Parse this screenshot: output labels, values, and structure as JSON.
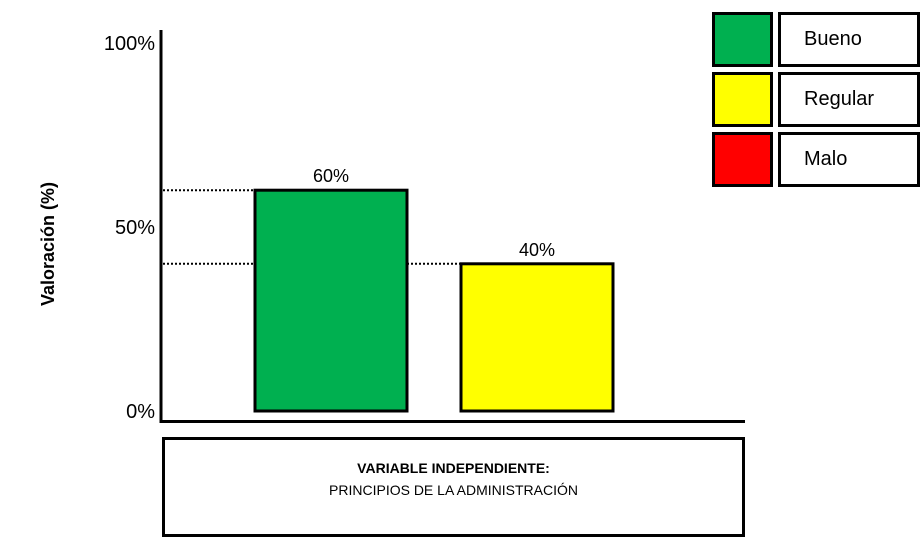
{
  "chart_data": {
    "type": "bar",
    "categories": [
      "Bueno",
      "Regular"
    ],
    "values": [
      60,
      40
    ],
    "value_labels": [
      "60%",
      "40%"
    ],
    "ylabel": "Valoración (%)",
    "ylim": [
      0,
      100
    ],
    "yticks": [
      {
        "value": 0,
        "label": "0%"
      },
      {
        "value": 50,
        "label": "50%"
      },
      {
        "value": 100,
        "label": "100%"
      }
    ],
    "colors": [
      "#00b050",
      "#ffff00"
    ],
    "xlabel_title": "VARIABLE INDEPENDIENTE:",
    "xlabel_subtitle": "PRINCIPIOS DE LA ADMINISTRACIÓN",
    "legend_placement": "top-right",
    "legend": [
      {
        "label": "Bueno",
        "color": "#00b050"
      },
      {
        "label": "Regular",
        "color": "#ffff00"
      },
      {
        "label": "Malo",
        "color": "#ff0000"
      }
    ]
  }
}
